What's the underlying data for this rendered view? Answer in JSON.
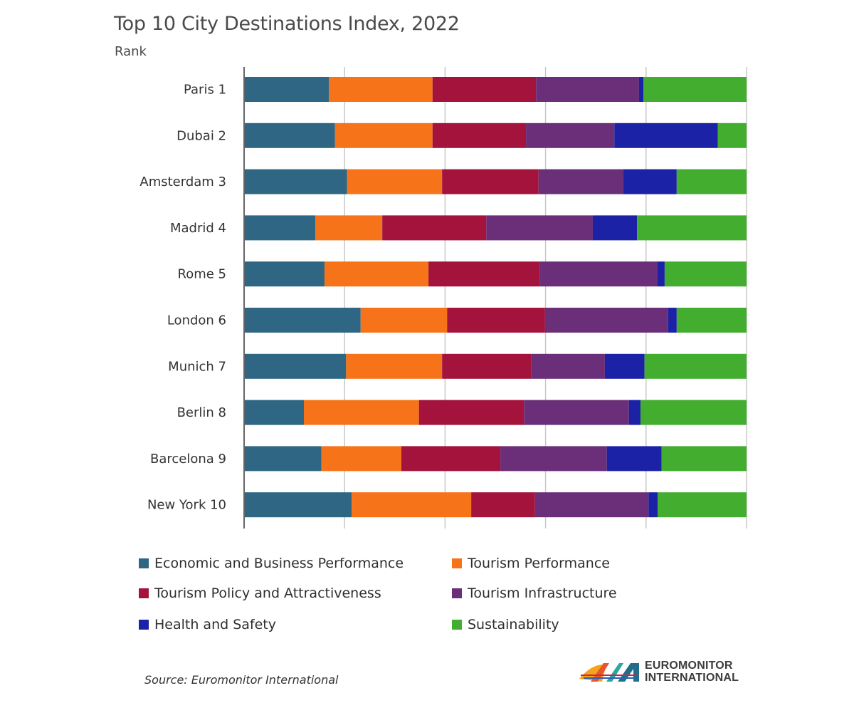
{
  "chart_data": {
    "type": "bar",
    "orientation": "horizontal",
    "stacked": "percent",
    "title": "Top 10 City Destinations Index, 2022",
    "subtitle": "Rank",
    "xlabel": "",
    "ylabel": "Rank",
    "xlim": [
      0,
      100
    ],
    "grid": true,
    "tick_labels_shown": false,
    "legend_position": "bottom",
    "categories": [
      "Paris 1",
      "Dubai 2",
      "Amsterdam 3",
      "Madrid 4",
      "Rome 5",
      "London 6",
      "Munich 7",
      "Berlin 8",
      "Barcelona 9",
      "New York 10"
    ],
    "series": [
      {
        "name": "Economic and Business Performance",
        "color": "#2e6683",
        "values": [
          16.9,
          18.1,
          20.5,
          14.2,
          16.0,
          23.2,
          20.3,
          11.9,
          15.4,
          21.4
        ]
      },
      {
        "name": "Tourism Performance",
        "color": "#f7731a",
        "values": [
          20.6,
          19.4,
          18.9,
          13.3,
          20.7,
          17.2,
          19.1,
          22.9,
          15.9,
          23.8
        ]
      },
      {
        "name": "Tourism Policy and Attractiveness",
        "color": "#a3133c",
        "values": [
          20.6,
          18.6,
          19.2,
          20.7,
          22.1,
          19.5,
          17.8,
          20.9,
          19.7,
          12.7
        ]
      },
      {
        "name": "Tourism Infrastructure",
        "color": "#6a2f78",
        "values": [
          20.5,
          17.6,
          16.9,
          21.2,
          23.4,
          24.5,
          14.6,
          20.9,
          21.2,
          22.6
        ]
      },
      {
        "name": "Health and Safety",
        "color": "#1c22a6",
        "values": [
          0.9,
          20.6,
          10.6,
          8.8,
          1.5,
          1.7,
          7.9,
          2.3,
          10.9,
          1.8
        ]
      },
      {
        "name": "Sustainability",
        "color": "#42ad2f",
        "values": [
          20.5,
          5.7,
          13.9,
          21.8,
          16.3,
          13.9,
          20.3,
          21.1,
          16.9,
          17.7
        ]
      }
    ],
    "gridlines_at": [
      20,
      40,
      60,
      80,
      100
    ]
  },
  "source": "Source: Euromonitor International",
  "logo": {
    "line1": "EUROMONITOR",
    "line2": "INTERNATIONAL"
  }
}
